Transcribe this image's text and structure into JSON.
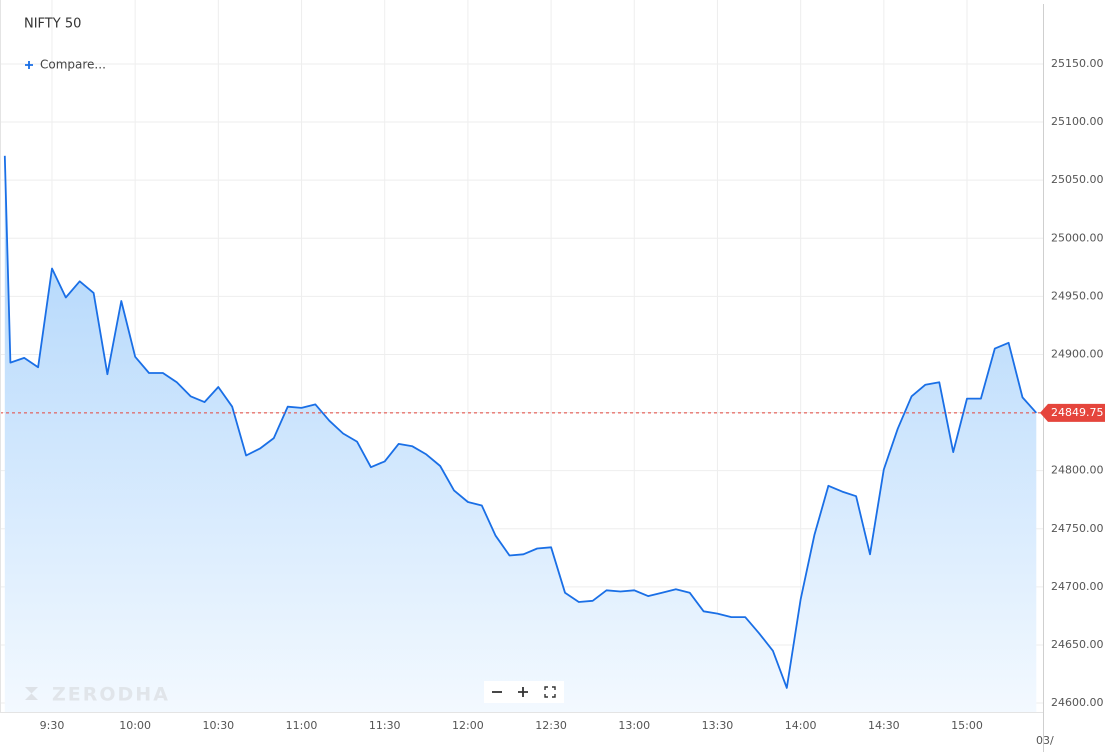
{
  "chart_data": {
    "type": "area",
    "title": "NIFTY 50",
    "compare_button": "Compare...",
    "watermark": "ZERODHA",
    "date_label": "03/",
    "x": [
      553,
      555,
      560,
      565,
      570,
      575,
      580,
      585,
      590,
      595,
      600,
      605,
      610,
      615,
      620,
      625,
      630,
      635,
      640,
      645,
      650,
      655,
      660,
      665,
      670,
      675,
      680,
      685,
      690,
      695,
      700,
      705,
      710,
      715,
      720,
      725,
      730,
      735,
      740,
      745,
      750,
      755,
      760,
      765,
      770,
      775,
      780,
      785,
      790,
      795,
      800,
      805,
      810,
      815,
      820,
      825,
      830,
      835,
      840,
      845,
      850,
      855,
      860,
      865,
      870,
      875,
      880,
      885,
      890,
      895,
      900,
      905,
      910,
      915,
      920,
      925
    ],
    "series": [
      {
        "name": "NIFTY 50",
        "color": "#1a6fe6",
        "values": [
          25071,
          24893,
          24897,
          24889,
          24974,
          24949,
          24963,
          24953,
          24883,
          24946,
          24898,
          24884,
          24884,
          24876,
          24864,
          24859,
          24872,
          24855,
          24813,
          24819,
          24828,
          24855,
          24854,
          24857,
          24843,
          24832,
          24825,
          24803,
          24808,
          24823,
          24821,
          24814,
          24804,
          24783,
          24773,
          24770,
          24744,
          24727,
          24728,
          24733,
          24734,
          24695,
          24687,
          24688,
          24697,
          24696,
          24697,
          24692,
          24695,
          24698,
          24695,
          24679,
          24677,
          24674,
          24674,
          24660,
          24645,
          24613,
          24689,
          24745,
          24787,
          24782,
          24778,
          24728,
          24801,
          24836,
          24864,
          24874,
          24876,
          24816,
          24862,
          24862,
          24905,
          24910,
          24863,
          24849.75
        ]
      }
    ],
    "last_price": {
      "value": 24849.75,
      "label": "24849.75",
      "color": "#e5453c"
    },
    "xlim": [
      552.7,
      927.4
    ],
    "ylim": [
      24592.3,
      25201.6
    ],
    "xticks": [
      {
        "value": 570,
        "label": "9:30"
      },
      {
        "value": 600,
        "label": "10:00"
      },
      {
        "value": 630,
        "label": "10:30"
      },
      {
        "value": 660,
        "label": "11:00"
      },
      {
        "value": 690,
        "label": "11:30"
      },
      {
        "value": 720,
        "label": "12:00"
      },
      {
        "value": 750,
        "label": "12:30"
      },
      {
        "value": 780,
        "label": "13:00"
      },
      {
        "value": 810,
        "label": "13:30"
      },
      {
        "value": 840,
        "label": "14:00"
      },
      {
        "value": 870,
        "label": "14:30"
      },
      {
        "value": 900,
        "label": "15:00"
      }
    ],
    "yticks": [
      {
        "value": 24600,
        "label": "24600.00"
      },
      {
        "value": 24650,
        "label": "24650.00"
      },
      {
        "value": 24700,
        "label": "24700.00"
      },
      {
        "value": 24750,
        "label": "24750.00"
      },
      {
        "value": 24800,
        "label": "24800.00"
      },
      {
        "value": 24850,
        "label": "24850.00"
      },
      {
        "value": 24900,
        "label": "24900.00"
      },
      {
        "value": 24950,
        "label": "24950.00"
      },
      {
        "value": 25000,
        "label": "25000.00"
      },
      {
        "value": 25050,
        "label": "25050.00"
      },
      {
        "value": 25100,
        "label": "25100.00"
      },
      {
        "value": 25150,
        "label": "25150.00"
      }
    ],
    "grid": true
  }
}
